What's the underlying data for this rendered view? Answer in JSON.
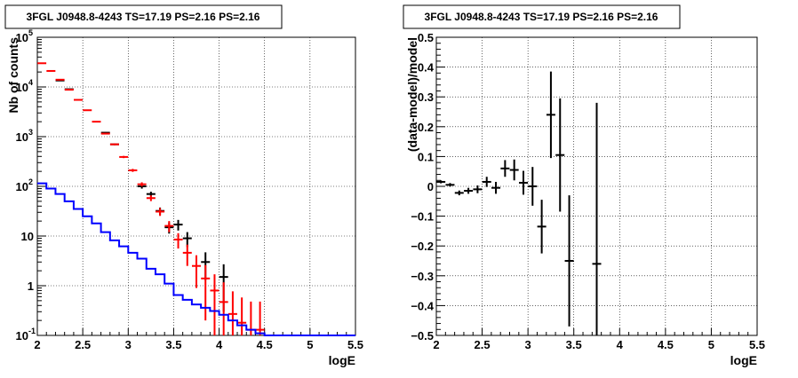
{
  "chart_data": [
    {
      "type": "scatter",
      "title": "3FGL J0948.8-4243 TS=17.19 PS=2.16 PS=2.16",
      "xlabel": "logE",
      "ylabel": "Nb of counts",
      "xlim": [
        2,
        5.5
      ],
      "ylim": [
        0.1,
        100000
      ],
      "yscale": "log",
      "grid": true,
      "x_ticks": [
        "2",
        "2.5",
        "3",
        "3.5",
        "4",
        "4.5",
        "5",
        "5.5"
      ],
      "y_ticks": [
        {
          "v": 0.1,
          "base": "10",
          "exp": "-1"
        },
        {
          "v": 1,
          "base": "1",
          "exp": ""
        },
        {
          "v": 10,
          "base": "10",
          "exp": ""
        },
        {
          "v": 100,
          "base": "10",
          "exp": "2"
        },
        {
          "v": 1000,
          "base": "10",
          "exp": "3"
        },
        {
          "v": 10000,
          "base": "10",
          "exp": "4"
        },
        {
          "v": 100000,
          "base": "10",
          "exp": "5"
        }
      ],
      "series": [
        {
          "color": "#000000",
          "style": "errorbar",
          "x": [
            2.25,
            2.35,
            2.75,
            2.85,
            3.15,
            3.25,
            3.35,
            3.45,
            3.55,
            3.65,
            3.85,
            4.05
          ],
          "y": [
            13500,
            9000,
            1200,
            700,
            100,
            70,
            32,
            15,
            17,
            9,
            3,
            1.5
          ],
          "yerr_low": [
            100,
            95,
            35,
            26,
            10,
            8,
            5.5,
            3.8,
            4.1,
            3,
            1.7,
            1.2
          ],
          "yerr_high": [
            100,
            95,
            35,
            26,
            10,
            8,
            5.5,
            3.8,
            4.1,
            3,
            1.7,
            1.2
          ]
        },
        {
          "color": "#ff0000",
          "style": "errorbar",
          "x": [
            2.05,
            2.15,
            2.25,
            2.35,
            2.45,
            2.55,
            2.65,
            2.75,
            2.85,
            2.95,
            3.05,
            3.15,
            3.25,
            3.35,
            3.45,
            3.55,
            3.65,
            3.75,
            3.85,
            3.95,
            4.05,
            4.15,
            4.25,
            4.35,
            4.45
          ],
          "y": [
            30000,
            21000,
            14000,
            8800,
            5500,
            3400,
            2000,
            1150,
            700,
            390,
            210,
            110,
            58,
            31,
            16,
            8.5,
            4.6,
            2.5,
            1.4,
            0.8,
            0.47,
            0.27,
            0.18,
            0.13,
            0.13
          ],
          "yerr_low": [
            170,
            145,
            118,
            94,
            74,
            58,
            45,
            34,
            26,
            20,
            14.5,
            10.5,
            7.6,
            5.6,
            4,
            2.9,
            2.1,
            1.6,
            1.2,
            0.8,
            0.4,
            0.22,
            0.12,
            0.07,
            0.07
          ],
          "yerr_high": [
            170,
            145,
            118,
            94,
            74,
            58,
            45,
            34,
            26,
            20,
            14.5,
            10.5,
            7.6,
            5.6,
            4,
            2.9,
            2.1,
            1.6,
            1.2,
            0.9,
            0.7,
            0.5,
            0.4,
            0.35,
            0.35
          ]
        },
        {
          "color": "#0000ff",
          "style": "step",
          "bin_edges": [
            2.0,
            2.1,
            2.2,
            2.3,
            2.4,
            2.5,
            2.6,
            2.7,
            2.8,
            2.9,
            3.0,
            3.1,
            3.2,
            3.3,
            3.4,
            3.5,
            3.6,
            3.7,
            3.8,
            3.9,
            4.0,
            4.1,
            4.2,
            4.3,
            4.4,
            4.5,
            5.5
          ],
          "values": [
            115,
            90,
            70,
            50,
            35,
            25,
            18,
            12,
            8.2,
            6.2,
            4.6,
            3.5,
            2.2,
            1.7,
            1.1,
            0.65,
            0.52,
            0.42,
            0.36,
            0.31,
            0.26,
            0.2,
            0.16,
            0.13,
            0.11,
            0.1
          ]
        }
      ]
    },
    {
      "type": "scatter",
      "title": "3FGL J0948.8-4243 TS=17.19 PS=2.16 PS=2.16",
      "xlabel": "logE",
      "ylabel": "(data-model)/model",
      "xlim": [
        2,
        5.5
      ],
      "ylim": [
        -0.5,
        0.5
      ],
      "grid": true,
      "x_ticks": [
        "2",
        "2.5",
        "3",
        "3.5",
        "4",
        "4.5",
        "5",
        "5.5"
      ],
      "y_ticks": [
        "0.5",
        "0.4",
        "0.3",
        "0.2",
        "0.1",
        "0",
        "−0.1",
        "−0.2",
        "−0.3",
        "−0.4",
        "−0.5"
      ],
      "series": [
        {
          "color": "#000000",
          "style": "errorbar",
          "x": [
            2.05,
            2.15,
            2.25,
            2.35,
            2.45,
            2.55,
            2.65,
            2.75,
            2.85,
            2.95,
            3.05,
            3.15,
            3.25,
            3.35,
            3.45,
            3.75
          ],
          "y": [
            0.015,
            0.005,
            -0.022,
            -0.015,
            -0.01,
            0.015,
            -0.005,
            0.06,
            0.055,
            0.012,
            0.0,
            -0.135,
            0.24,
            0.105,
            -0.25,
            -0.26
          ],
          "yerr": [
            0.005,
            0.006,
            0.008,
            0.01,
            0.013,
            0.017,
            0.02,
            0.028,
            0.035,
            0.04,
            0.065,
            0.09,
            0.145,
            0.19,
            0.22,
            0.54
          ]
        }
      ]
    }
  ]
}
